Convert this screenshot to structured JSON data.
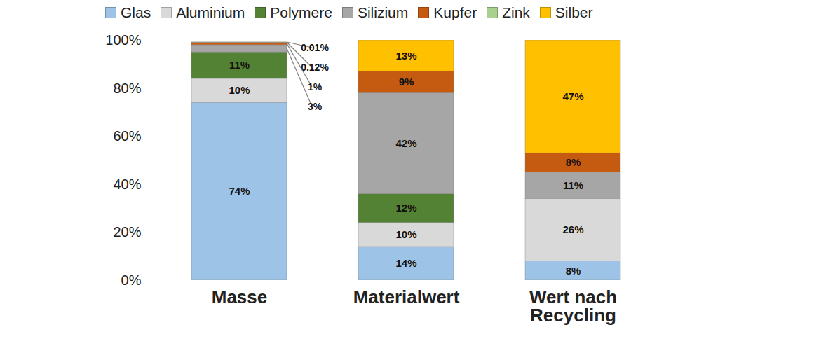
{
  "chart_data": {
    "type": "bar",
    "stacked": true,
    "data_labels": true,
    "legend": "top",
    "grid": false,
    "categories": [
      "Masse",
      "Materialwert",
      "Wert nach Recycling"
    ],
    "ylim": [
      0,
      100
    ],
    "yticks": [
      {
        "value": 0,
        "label": "0%"
      },
      {
        "value": 20,
        "label": "20%"
      },
      {
        "value": 40,
        "label": "40%"
      },
      {
        "value": 60,
        "label": "60%"
      },
      {
        "value": 80,
        "label": "80%"
      },
      {
        "value": 100,
        "label": "100%"
      }
    ],
    "series": [
      {
        "name": "Glas",
        "color": "#9dc3e6",
        "values": [
          74,
          14,
          8
        ],
        "value_labels": [
          "74%",
          "14%",
          "8%"
        ]
      },
      {
        "name": "Aluminium",
        "color": "#d9d9d9",
        "values": [
          10,
          10,
          26
        ],
        "value_labels": [
          "10%",
          "10%",
          "26%"
        ]
      },
      {
        "name": "Polymere",
        "color": "#548235",
        "values": [
          11,
          12,
          null
        ],
        "value_labels": [
          "11%",
          "12%",
          null
        ]
      },
      {
        "name": "Silizium",
        "color": "#a6a6a6",
        "values": [
          3,
          42,
          11
        ],
        "value_labels": [
          "3%",
          "42%",
          "11%"
        ]
      },
      {
        "name": "Kupfer",
        "color": "#c55a11",
        "values": [
          1,
          9,
          8
        ],
        "value_labels": [
          "1%",
          "9%",
          "8%"
        ]
      },
      {
        "name": "Zink",
        "color": "#a9d18e",
        "values": [
          0.12,
          null,
          null
        ],
        "value_labels": [
          "0.12%",
          null,
          null
        ]
      },
      {
        "name": "Silber",
        "color": "#ffc000",
        "values": [
          0.01,
          13,
          47
        ],
        "value_labels": [
          "0.01%",
          "13%",
          "47%"
        ]
      }
    ]
  }
}
